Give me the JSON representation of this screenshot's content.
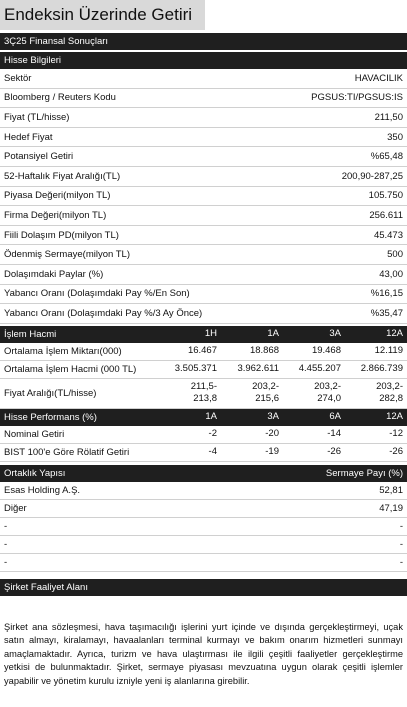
{
  "title": "Endeksin Üzerinde Getiri",
  "section": "3Ç25 Finansal Sonuçları",
  "stock_info": {
    "header": "Hisse Bilgileri",
    "rows": [
      [
        "Sektör",
        "HAVACILIK"
      ],
      [
        "Bloomberg / Reuters Kodu",
        "PGSUS:TI/PGSUS:IS"
      ],
      [
        "Fiyat (TL/hisse)",
        "211,50"
      ],
      [
        "Hedef Fiyat",
        "350"
      ],
      [
        "Potansiyel Getiri",
        "%65,48"
      ],
      [
        "52-Haftalık Fiyat Aralığı(TL)",
        "200,90-287,25"
      ],
      [
        "Piyasa Değeri(milyon TL)",
        "105.750"
      ],
      [
        "Firma Değeri(milyon TL)",
        "256.611"
      ],
      [
        "Fiili Dolaşım PD(milyon TL)",
        "45.473"
      ],
      [
        "Ödenmiş Sermaye(milyon TL)",
        "500"
      ],
      [
        "Dolaşımdaki Paylar (%)",
        "43,00"
      ],
      [
        "Yabancı Oranı (Dolaşımdaki Pay %/En Son)",
        "%16,15"
      ],
      [
        "Yabancı Oranı (Dolaşımdaki Pay %/3 Ay Önce)",
        "%35,47"
      ]
    ]
  },
  "trading": {
    "header": [
      "İşlem Hacmi",
      "1H",
      "1A",
      "3A",
      "12A"
    ],
    "rows": [
      [
        "Ortalama İşlem Miktarı(000)",
        "16.467",
        "18.868",
        "19.468",
        "12.119"
      ],
      [
        "Ortalama İşlem Hacmi (000 TL)",
        "3.505.371",
        "3.962.611",
        "4.455.207",
        "2.866.739"
      ],
      [
        "Fiyat Aralığı(TL/hisse)",
        "211,5-\n213,8",
        "203,2-\n215,6",
        "203,2-\n274,0",
        "203,2-\n282,8"
      ]
    ]
  },
  "performance": {
    "header": [
      "Hisse Performans (%)",
      "1A",
      "3A",
      "6A",
      "12A"
    ],
    "rows": [
      [
        "Nominal Getiri",
        "-2",
        "-20",
        "-14",
        "-12"
      ],
      [
        "BIST 100'e Göre Rölatif Getiri",
        "-4",
        "-19",
        "-26",
        "-26"
      ]
    ]
  },
  "shareholders": {
    "header": [
      "Ortaklık Yapısı",
      "Sermaye Payı (%)"
    ],
    "rows": [
      [
        "Esas Holding A.Ş.",
        "52,81"
      ],
      [
        "Diğer",
        "47,19"
      ],
      [
        "-",
        "-"
      ],
      [
        "-",
        "-"
      ],
      [
        "-",
        "-"
      ]
    ]
  },
  "activity": {
    "header": "Şirket Faaliyet Alanı",
    "text": "Şirket ana sözleşmesi, hava taşımacılığı işlerini yurt içinde ve dışında gerçekleştirmeyi, uçak satın almayı, kiralamayı, havaalanları terminal kurmayı ve bakım onarım hizmetleri sunmayı amaçlamaktadır. Ayrıca, turizm ve hava ulaştırması ile ilgili çeşitli faaliyetler gerçekleştirme yetkisi de bulunmaktadır. Şirket, sermaye piyasası mevzuatına uygun olarak çeşitli işlemler yapabilir ve yönetim kurulu izniyle yeni iş alanlarına girebilir."
  }
}
